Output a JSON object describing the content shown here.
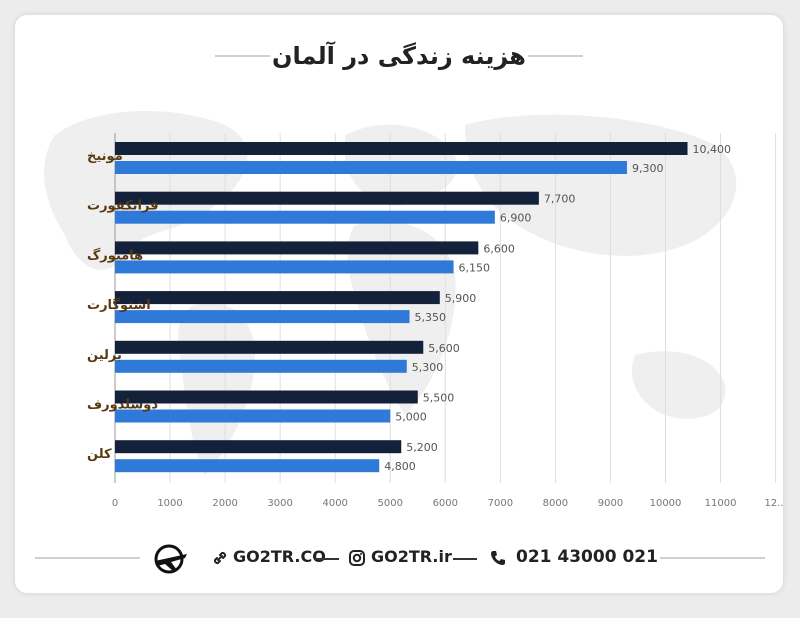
{
  "title": "هزینه زندگی در آلمان",
  "footer": {
    "site": "GO2TR.CO",
    "instagram": "GO2TR.ir",
    "phone": "021 43000 021",
    "icons": [
      "link-icon",
      "instagram-icon",
      "phone-icon",
      "airplane-logo-icon"
    ]
  },
  "colors": {
    "series_dark": "#14213a",
    "series_light": "#2f79d9",
    "label_text": "#5a3a10"
  },
  "chart_data": {
    "type": "bar",
    "orientation": "horizontal",
    "categories": [
      "مونیخ",
      "فرانکفورت",
      "هامبورگ",
      "اشتوگارت",
      "برلین",
      "دوسلدورف",
      "کلن"
    ],
    "series": [
      {
        "values": [
          10400,
          7700,
          6600,
          5900,
          5600,
          5500,
          5200
        ],
        "labels": [
          "10,400",
          "7,700",
          "6,600",
          "5,900",
          "5,600",
          "5,500",
          "5,200"
        ]
      },
      {
        "values": [
          9300,
          6900,
          6150,
          5350,
          5300,
          5000,
          4800
        ],
        "labels": [
          "9,300",
          "6,900",
          "6,150",
          "5,350",
          "5,300",
          "5,000",
          "4,800"
        ]
      }
    ],
    "xticks": [
      "0",
      "1000",
      "2000",
      "3000",
      "4000",
      "5000",
      "6000",
      "7000",
      "8000",
      "9000",
      "10000",
      "11000",
      "12..."
    ],
    "xlim": [
      0,
      12000
    ],
    "grid": true
  }
}
